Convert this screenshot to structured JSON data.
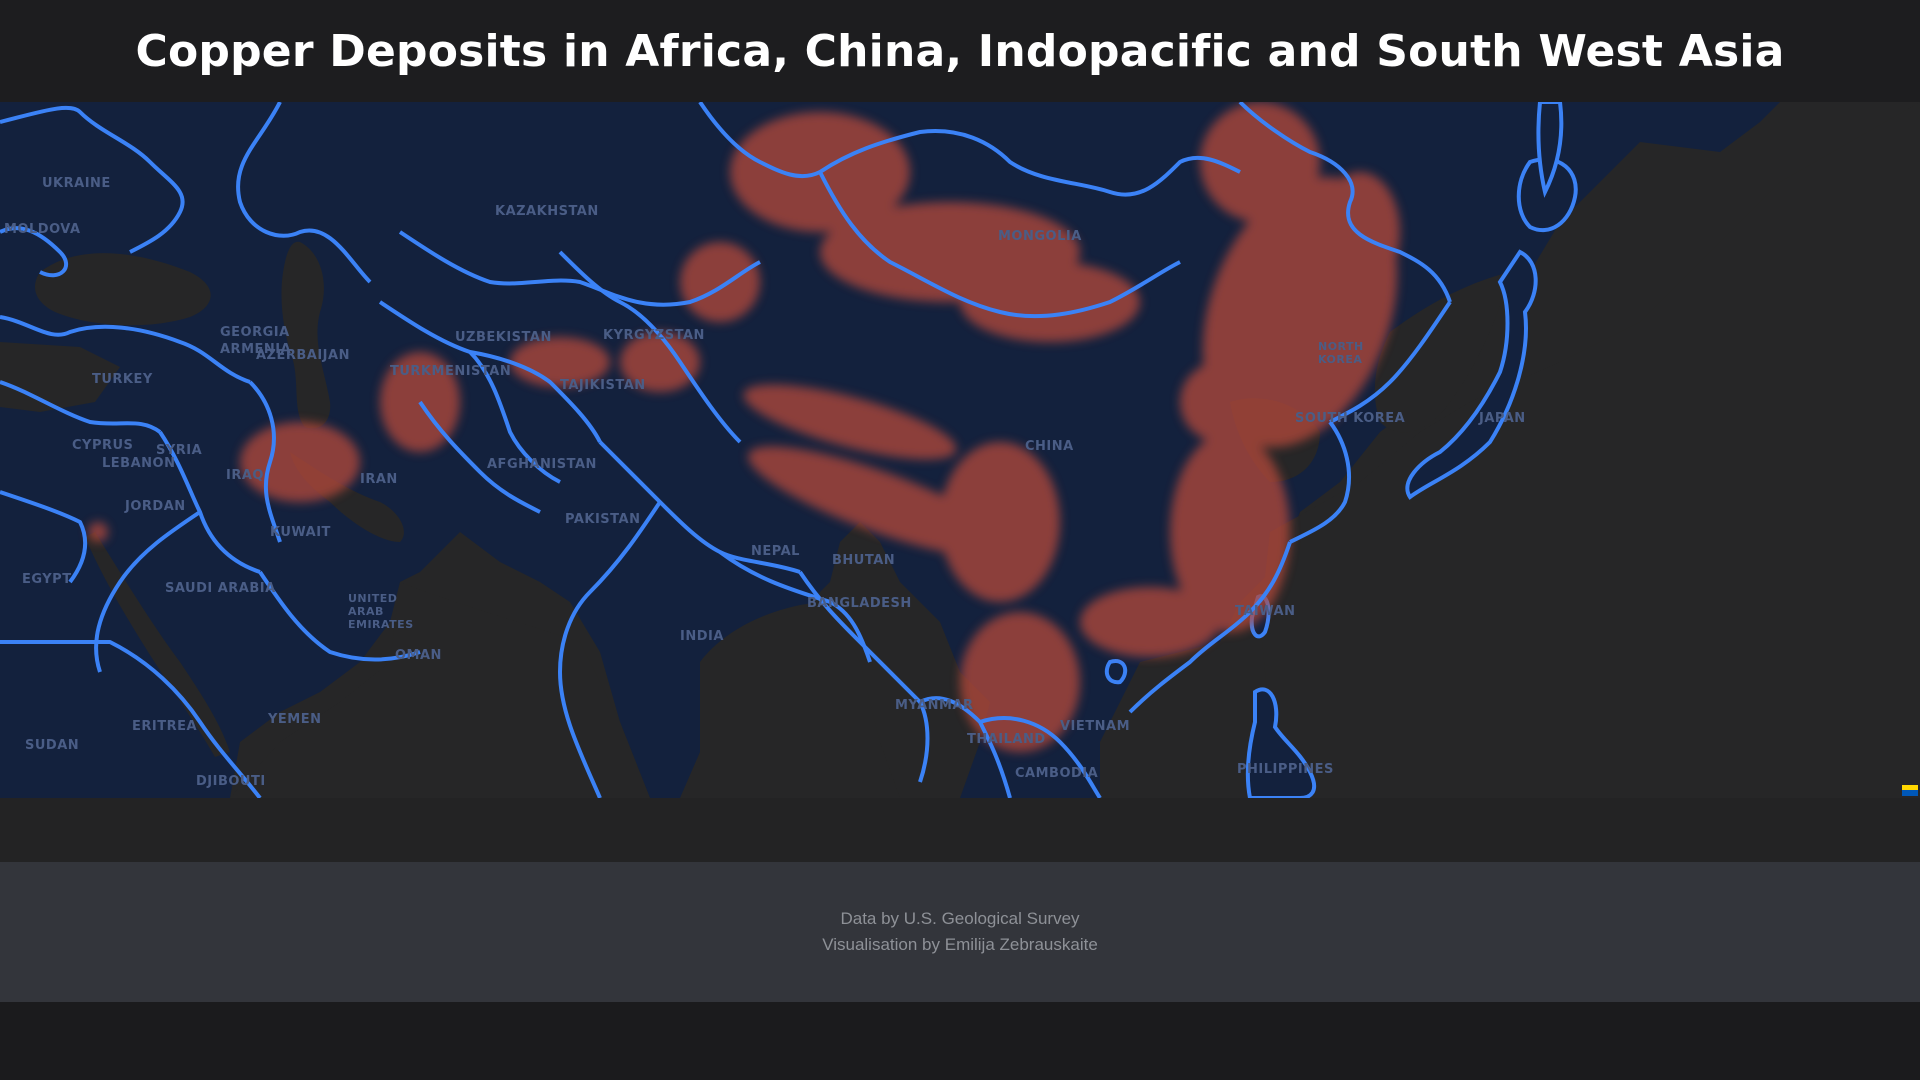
{
  "header": {
    "title": "Copper Deposits in Africa, China, Indopacific and South West Asia"
  },
  "map": {
    "colors": {
      "land": "#13213d",
      "water": "#262627",
      "border": "#3b82f6",
      "deposit": "#b5483a"
    },
    "labels": [
      "UKRAINE",
      "MOLDOVA",
      "KAZAKHSTAN",
      "MONGOLIA",
      "UZBEKISTAN",
      "KYRGYZSTAN",
      "GEORGIA",
      "ARMENIA",
      "AZERBAIJAN",
      "TURKMENISTAN",
      "TAJIKISTAN",
      "TURKEY",
      "SYRIA",
      "CYPRUS",
      "LEBANON",
      "IRAQ",
      "IRAN",
      "AFGHANISTAN",
      "PAKISTAN",
      "JORDAN",
      "KUWAIT",
      "EGYPT",
      "SAUDI ARABIA",
      "UNITED ARAB EMIRATES",
      "OMAN",
      "YEMEN",
      "ERITREA",
      "SUDAN",
      "DJIBOUTI",
      "CHINA",
      "NEPAL",
      "BHUTAN",
      "BANGLADESH",
      "INDIA",
      "MYANMAR",
      "THAILAND",
      "VIETNAM",
      "CAMBODIA",
      "NORTH KOREA",
      "SOUTH KOREA",
      "JAPAN",
      "TAIWAN",
      "PHILIPPINES"
    ]
  },
  "footer": {
    "source": "Data by U.S. Geological Survey",
    "credit": "Visualisation by Emilija Zebrauskaite"
  }
}
